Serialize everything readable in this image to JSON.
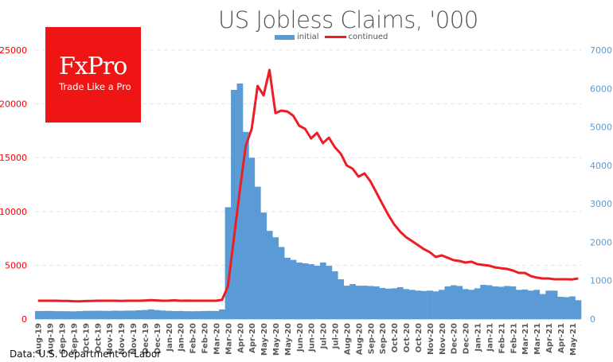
{
  "chart_data": {
    "type": "bar+line",
    "title": "US Jobless Claims, '000",
    "source": "Data: U.S. Department of Labor",
    "logo": {
      "word": "FxPro",
      "tagline": "Trade Like a Pro"
    },
    "left_axis": {
      "ylim": [
        0,
        25000
      ],
      "ticks": [
        "0",
        "5000",
        "10000",
        "15000",
        "20000",
        "25000"
      ],
      "color": "#ff0000"
    },
    "right_axis": {
      "ylim": [
        0,
        7000
      ],
      "ticks": [
        "0",
        "1000",
        "2000",
        "3000",
        "4000",
        "5000",
        "6000",
        "7000"
      ],
      "color": "#5b9bd5"
    },
    "x_tick_labels": [
      "Aug-19",
      "Aug-19",
      "Sep-19",
      "Sep-19",
      "Oct-19",
      "Oct-19",
      "Nov-19",
      "Nov-19",
      "Nov-19",
      "Dec-19",
      "Dec-19",
      "Jan-20",
      "Jan-20",
      "Feb-20",
      "Feb-20",
      "Mar-20",
      "Mar-20",
      "Apr-20",
      "Apr-20",
      "May-20",
      "May-20",
      "May-20",
      "Jun-20",
      "Jun-20",
      "Jul-20",
      "Jul-20",
      "Aug-20",
      "Aug-20",
      "Sep-20",
      "Sep-20",
      "Oct-20",
      "Oct-20",
      "Oct-20",
      "Nov-20",
      "Nov-20",
      "Dec-20",
      "Dec-20",
      "Jan-21",
      "Jan-21",
      "Feb-21",
      "Feb-21",
      "Mar-21",
      "Mar-21",
      "Apr-21",
      "Apr-21",
      "May-21"
    ],
    "grid": true,
    "legend_placement": "top-center",
    "series": [
      {
        "name": "initial",
        "type": "bar",
        "axis": "right",
        "color": "#5b9bd5",
        "values": [
          209,
          210,
          211,
          206,
          205,
          203,
          200,
          206,
          213,
          215,
          216,
          214,
          212,
          218,
          215,
          220,
          219,
          228,
          235,
          252,
          234,
          222,
          214,
          207,
          211,
          205,
          202,
          205,
          210,
          213,
          211,
          251,
          2912,
          5964,
          6132,
          4872,
          4200,
          3444,
          2772,
          2296,
          2128,
          1876,
          1596,
          1540,
          1470,
          1450,
          1428,
          1386,
          1470,
          1386,
          1243,
          1036,
          868,
          910,
          868,
          868,
          860,
          850,
          810,
          790,
          800,
          830,
          780,
          760,
          740,
          730,
          740,
          720,
          760,
          850,
          880,
          860,
          780,
          760,
          800,
          890,
          880,
          850,
          840,
          860,
          850,
          760,
          770,
          740,
          760,
          650,
          740,
          740,
          580,
          570,
          590,
          490
        ]
      },
      {
        "name": "continued",
        "type": "line",
        "axis": "left",
        "color": "#ee1c25",
        "values": [
          1700,
          1700,
          1700,
          1700,
          1690,
          1680,
          1660,
          1650,
          1670,
          1690,
          1700,
          1700,
          1700,
          1700,
          1690,
          1700,
          1700,
          1700,
          1720,
          1750,
          1730,
          1700,
          1710,
          1740,
          1700,
          1710,
          1700,
          1700,
          1700,
          1700,
          1700,
          1780,
          3030,
          7500,
          12000,
          16100,
          17700,
          21670,
          20800,
          23150,
          19150,
          19380,
          19300,
          18900,
          17970,
          17680,
          16790,
          17310,
          16350,
          16860,
          15980,
          15380,
          14280,
          13980,
          13240,
          13540,
          12800,
          11760,
          10720,
          9690,
          8800,
          8130,
          7620,
          7250,
          6880,
          6500,
          6210,
          5770,
          5920,
          5700,
          5470,
          5400,
          5250,
          5330,
          5100,
          5030,
          4960,
          4800,
          4730,
          4660,
          4510,
          4290,
          4290,
          4000,
          3850,
          3770,
          3770,
          3700,
          3700,
          3700,
          3680,
          3770
        ]
      }
    ]
  }
}
